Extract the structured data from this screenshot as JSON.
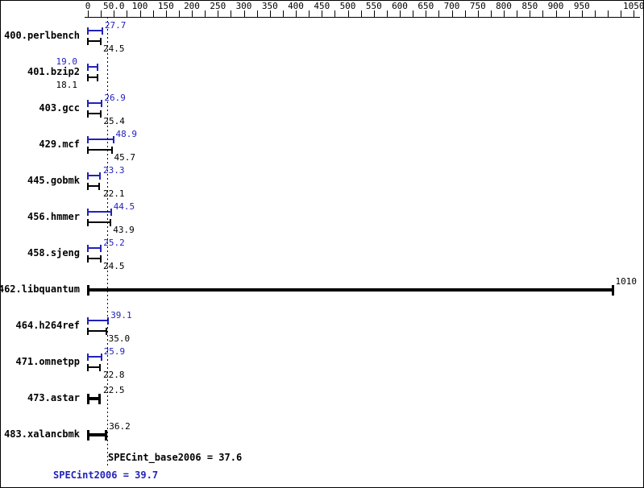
{
  "chart_data": {
    "type": "bar",
    "orientation": "horizontal",
    "title": "",
    "x_axis": {
      "tick_labels": [
        "0",
        "50.0",
        "100",
        "150",
        "200",
        "250",
        "300",
        "350",
        "400",
        "450",
        "500",
        "550",
        "600",
        "650",
        "700",
        "750",
        "800",
        "850",
        "900",
        "950",
        "1050"
      ],
      "minor_tick_step": 25,
      "range": [
        0,
        1062
      ]
    },
    "colors": {
      "peak": "#2222bb",
      "base": "#000000"
    },
    "benchmarks": [
      {
        "name": "400.perlbench",
        "peak": "27.7",
        "base": "24.5"
      },
      {
        "name": "401.bzip2",
        "peak": "19.0",
        "base": "18.1"
      },
      {
        "name": "403.gcc",
        "peak": "26.9",
        "base": "25.4"
      },
      {
        "name": "429.mcf",
        "peak": "48.9",
        "base": "45.7"
      },
      {
        "name": "445.gobmk",
        "peak": "23.3",
        "base": "22.1"
      },
      {
        "name": "456.hmmer",
        "peak": "44.5",
        "base": "43.9"
      },
      {
        "name": "458.sjeng",
        "peak": "25.2",
        "base": "24.5"
      },
      {
        "name": "462.libquantum",
        "single": "1010"
      },
      {
        "name": "464.h264ref",
        "peak": "39.1",
        "base": "35.0"
      },
      {
        "name": "471.omnetpp",
        "peak": "25.9",
        "base": "22.8"
      },
      {
        "name": "473.astar",
        "single": "22.5"
      },
      {
        "name": "483.xalancbmk",
        "single": "36.2"
      }
    ],
    "reference_line": 37.6,
    "summary": {
      "base": "SPECint_base2006 = 37.6",
      "peak": "SPECint2006 = 39.7"
    }
  }
}
